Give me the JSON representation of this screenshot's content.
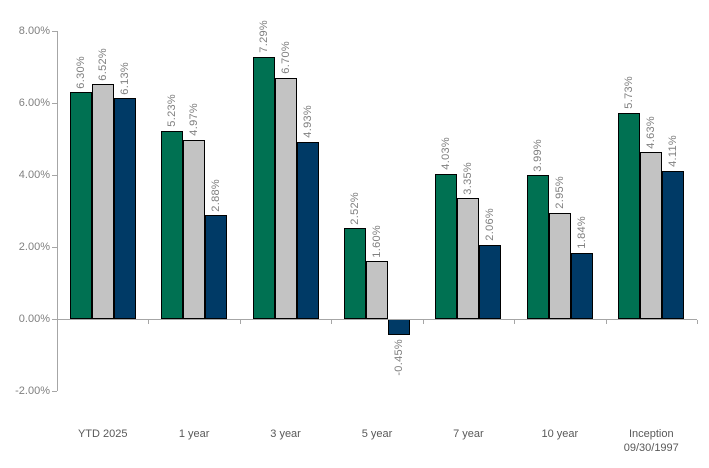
{
  "chart_data": {
    "type": "bar",
    "title": "",
    "xlabel": "",
    "ylabel": "",
    "categories": [
      "YTD 2025",
      "1 year",
      "3 year",
      "5 year",
      "7 year",
      "10 year",
      "Inception 09/30/1997"
    ],
    "category_label_lines": [
      [
        "YTD 2025"
      ],
      [
        "1 year"
      ],
      [
        "3 year"
      ],
      [
        "5 year"
      ],
      [
        "7 year"
      ],
      [
        "10 year"
      ],
      [
        "Inception",
        "09/30/1997"
      ]
    ],
    "series": [
      {
        "name": "green-series",
        "color": "#007152",
        "values": [
          6.3,
          5.23,
          7.29,
          2.52,
          4.03,
          3.99,
          5.73
        ]
      },
      {
        "name": "gray-series",
        "color": "#c3c3c3",
        "values": [
          6.52,
          4.97,
          6.7,
          1.6,
          3.35,
          2.95,
          4.63
        ]
      },
      {
        "name": "navy-series",
        "color": "#003a66",
        "values": [
          6.13,
          2.88,
          4.93,
          -0.45,
          2.06,
          1.84,
          4.11
        ]
      }
    ],
    "value_labels": [
      [
        "6.30%",
        "5.23%",
        "7.29%",
        "2.52%",
        "4.03%",
        "3.99%",
        "5.73%"
      ],
      [
        "6.52%",
        "4.97%",
        "6.70%",
        "1.60%",
        "3.35%",
        "2.95%",
        "4.63%"
      ],
      [
        "6.13%",
        "2.88%",
        "4.93%",
        "-0.45%",
        "2.06%",
        "1.84%",
        "4.11%"
      ]
    ],
    "y_ticks": [
      {
        "label": "8.00%",
        "value": 8
      },
      {
        "label": "6.00%",
        "value": 6
      },
      {
        "label": "4.00%",
        "value": 4
      },
      {
        "label": "2.00%",
        "value": 2
      },
      {
        "label": "0.00%",
        "value": 0
      },
      {
        "label": "-2.00%",
        "value": -2
      }
    ],
    "ylim": [
      -2,
      8
    ],
    "grid": false,
    "legend": "none",
    "colors": {
      "axis_line": "#a6a6a6",
      "value_label": "#808080",
      "tick_label": "#808080",
      "category_label": "#595959",
      "bar_border": "#000000",
      "background": "#ffffff"
    }
  }
}
